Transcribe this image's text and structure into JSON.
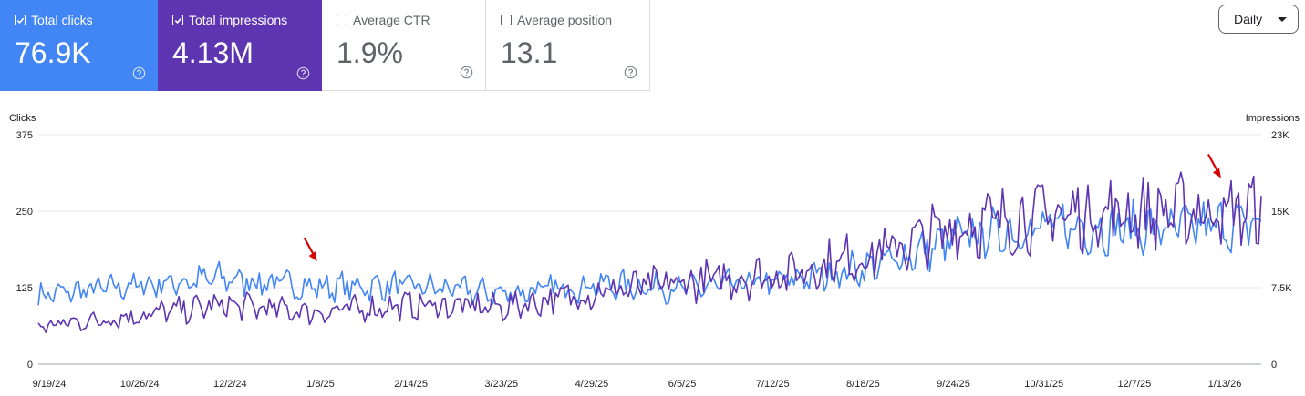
{
  "cards": [
    {
      "key": "clicks",
      "label": "Total clicks",
      "value": "76.9K",
      "checked": true,
      "color": "#4285f4"
    },
    {
      "key": "impr",
      "label": "Total impressions",
      "value": "4.13M",
      "checked": true,
      "color": "#5e35b1"
    },
    {
      "key": "ctr",
      "label": "Average CTR",
      "value": "1.9%",
      "checked": false
    },
    {
      "key": "pos",
      "label": "Average position",
      "value": "13.1",
      "checked": false
    }
  ],
  "period_selector": {
    "label": "Daily"
  },
  "chart_data": {
    "type": "line",
    "y_left": {
      "label": "Clicks",
      "range": [
        0,
        375
      ],
      "ticks": [
        "0",
        "125",
        "250",
        "375"
      ]
    },
    "y_right": {
      "label": "Impressions",
      "range": [
        0,
        23000
      ],
      "ticks": [
        "0",
        "7.5K",
        "15K",
        "23K"
      ]
    },
    "x_ticks": [
      "9/19/24",
      "10/26/24",
      "12/2/24",
      "1/8/25",
      "2/14/25",
      "3/23/25",
      "4/29/25",
      "6/5/25",
      "7/12/25",
      "8/18/25",
      "9/24/25",
      "10/31/25",
      "12/7/25",
      "1/13/26"
    ],
    "x_range": [
      "2024-09-19",
      "2026-01-19"
    ],
    "grid": true,
    "series": [
      {
        "name": "Clicks",
        "axis": "left",
        "color": "#4285f4",
        "anchors": [
          {
            "x": "2024-09-19",
            "y": 112
          },
          {
            "x": "2024-10-26",
            "y": 128
          },
          {
            "x": "2024-12-02",
            "y": 140
          },
          {
            "x": "2025-01-08",
            "y": 126
          },
          {
            "x": "2025-02-14",
            "y": 128
          },
          {
            "x": "2025-03-23",
            "y": 115
          },
          {
            "x": "2025-04-29",
            "y": 130
          },
          {
            "x": "2025-06-05",
            "y": 124
          },
          {
            "x": "2025-07-12",
            "y": 135
          },
          {
            "x": "2025-08-18",
            "y": 160
          },
          {
            "x": "2025-09-24",
            "y": 210
          },
          {
            "x": "2025-10-31",
            "y": 225
          },
          {
            "x": "2025-12-07",
            "y": 220
          },
          {
            "x": "2026-01-13",
            "y": 228
          },
          {
            "x": "2026-01-19",
            "y": 226
          }
        ]
      },
      {
        "name": "Impressions",
        "axis": "right",
        "color": "#5e35b1",
        "anchors": [
          {
            "x": "2024-09-19",
            "y": 3800
          },
          {
            "x": "2024-10-26",
            "y": 4800
          },
          {
            "x": "2024-12-02",
            "y": 5900
          },
          {
            "x": "2025-01-08",
            "y": 5200
          },
          {
            "x": "2025-02-14",
            "y": 5900
          },
          {
            "x": "2025-03-23",
            "y": 5700
          },
          {
            "x": "2025-04-29",
            "y": 7200
          },
          {
            "x": "2025-06-05",
            "y": 8200
          },
          {
            "x": "2025-07-12",
            "y": 9000
          },
          {
            "x": "2025-08-18",
            "y": 11000
          },
          {
            "x": "2025-09-24",
            "y": 14000
          },
          {
            "x": "2025-10-31",
            "y": 15000
          },
          {
            "x": "2025-12-07",
            "y": 15200
          },
          {
            "x": "2026-01-13",
            "y": 15400
          },
          {
            "x": "2026-01-19",
            "y": 15600
          }
        ]
      }
    ],
    "annotations": [
      {
        "type": "arrow",
        "color": "#d50000",
        "x": "2025-01-08",
        "axis": "left",
        "y": 162
      },
      {
        "type": "arrow",
        "color": "#d50000",
        "x": "2026-01-03",
        "axis": "right",
        "y": 18300
      }
    ]
  }
}
